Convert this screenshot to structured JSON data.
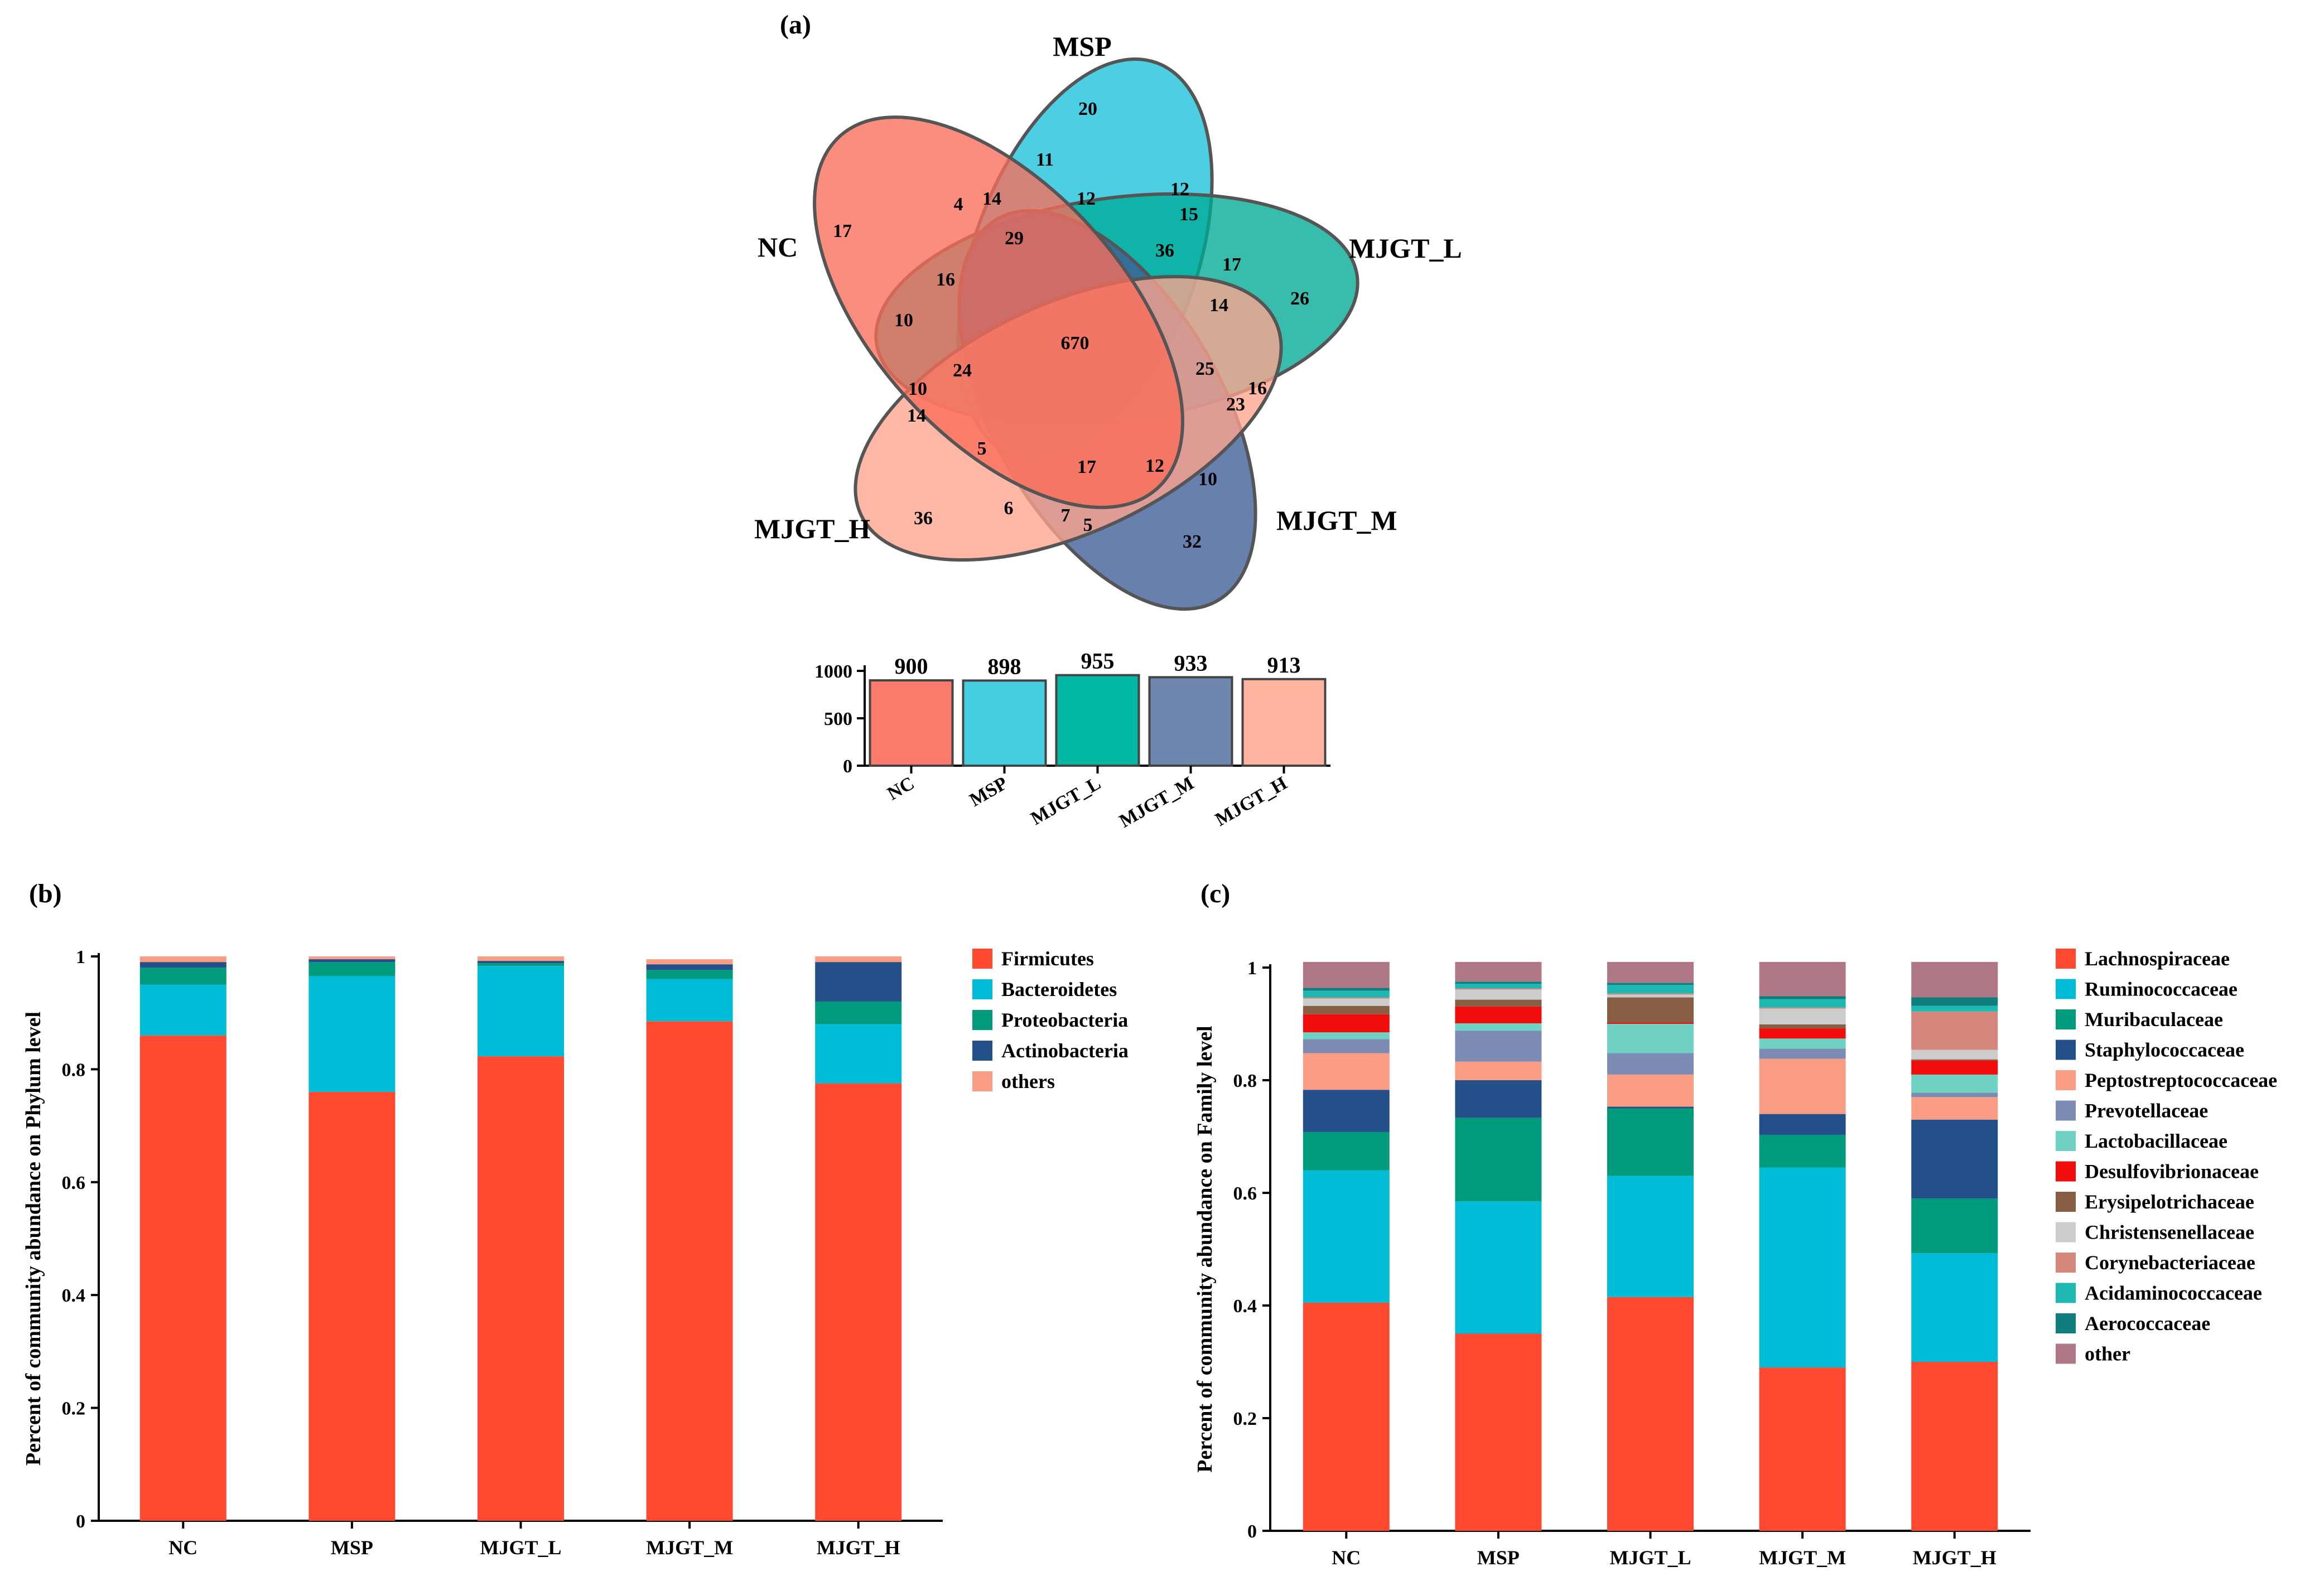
{
  "panel_labels": {
    "a": "(a)",
    "b": "(b)",
    "c": "(c)"
  },
  "venn": {
    "sets": [
      {
        "name": "MSP",
        "color": "#19C2DA"
      },
      {
        "name": "MJGT_L",
        "color": "#00AA96"
      },
      {
        "name": "MJGT_M",
        "color": "#3E5C96"
      },
      {
        "name": "MJGT_H",
        "color": "#FFA48D"
      },
      {
        "name": "NC",
        "color": "#FA6D5A"
      }
    ],
    "region_values": [
      "20",
      "11",
      "12",
      "4",
      "14",
      "12",
      "15",
      "17",
      "29",
      "36",
      "17",
      "16",
      "26",
      "10",
      "670",
      "14",
      "24",
      "25",
      "16",
      "10",
      "23",
      "14",
      "5",
      "17",
      "12",
      "10",
      "36",
      "6",
      "7",
      "5",
      "32"
    ]
  },
  "chart_data": [
    {
      "type": "bar",
      "title": "",
      "categories": [
        "NC",
        "MSP",
        "MJGT_L",
        "MJGT_M",
        "MJGT_H"
      ],
      "values": [
        900,
        898,
        955,
        933,
        913
      ],
      "colors": [
        "#FA7B6C",
        "#44CEE0",
        "#00B8A4",
        "#6F86AF",
        "#FFB4A2"
      ],
      "ylim": [
        0,
        1000
      ],
      "yticks": [
        "0",
        "500",
        "1000"
      ],
      "xlabel": "",
      "ylabel": ""
    },
    {
      "type": "bar",
      "stacked": true,
      "title": "",
      "xlabel": "",
      "ylabel": "Percent of community abundance on Phylum level",
      "ylim": [
        0,
        1
      ],
      "yticks": [
        "0",
        "0.2",
        "0.4",
        "0.6",
        "0.8",
        "1"
      ],
      "legend_position": "right",
      "categories": [
        "NC",
        "MSP",
        "MJGT_L",
        "MJGT_M",
        "MJGT_H"
      ],
      "series": [
        {
          "name": "Firmicutes",
          "color": "#FF4A31",
          "values": [
            0.86,
            0.76,
            0.823,
            0.885,
            0.775
          ]
        },
        {
          "name": "Bacteroidetes",
          "color": "#00BCD6",
          "values": [
            0.09,
            0.205,
            0.16,
            0.075,
            0.105
          ]
        },
        {
          "name": "Proteobacteria",
          "color": "#009B7C",
          "values": [
            0.03,
            0.025,
            0.005,
            0.016,
            0.04
          ]
        },
        {
          "name": "Actinobacteria",
          "color": "#24508A",
          "values": [
            0.01,
            0.005,
            0.004,
            0.01,
            0.07
          ]
        },
        {
          "name": "others",
          "color": "#FA9D84",
          "values": [
            0.01,
            0.005,
            0.008,
            0.009,
            0.01
          ]
        }
      ]
    },
    {
      "type": "bar",
      "stacked": true,
      "title": "",
      "xlabel": "",
      "ylabel": "Percent of community abundance on Family level",
      "ylim": [
        0,
        1
      ],
      "yticks": [
        "0",
        "0.2",
        "0.4",
        "0.6",
        "0.8",
        "1"
      ],
      "legend_position": "right",
      "categories": [
        "NC",
        "MSP",
        "MJGT_L",
        "MJGT_M",
        "MJGT_H"
      ],
      "series": [
        {
          "name": "Lachnospiraceae",
          "color": "#FF4A31",
          "values": [
            0.405,
            0.35,
            0.415,
            0.29,
            0.3
          ]
        },
        {
          "name": "Ruminococcaceae",
          "color": "#00BCD6",
          "values": [
            0.235,
            0.235,
            0.215,
            0.355,
            0.193
          ]
        },
        {
          "name": "Muribaculaceae",
          "color": "#009B7C",
          "values": [
            0.068,
            0.148,
            0.12,
            0.058,
            0.097
          ]
        },
        {
          "name": "Staphylococcaceae",
          "color": "#24508A",
          "values": [
            0.075,
            0.067,
            0.003,
            0.037,
            0.14
          ]
        },
        {
          "name": "Peptostreptococcaceae",
          "color": "#FA9D84",
          "values": [
            0.065,
            0.033,
            0.057,
            0.098,
            0.04
          ]
        },
        {
          "name": "Prevotellaceae",
          "color": "#7D8CB4",
          "values": [
            0.025,
            0.055,
            0.038,
            0.018,
            0.008
          ]
        },
        {
          "name": "Lactobacillaceae",
          "color": "#6FD2C3",
          "values": [
            0.012,
            0.013,
            0.052,
            0.018,
            0.032
          ]
        },
        {
          "name": "Desulfovibrionaceae",
          "color": "#F20D0D",
          "values": [
            0.032,
            0.03,
            0.002,
            0.018,
            0.025
          ]
        },
        {
          "name": "Erysipelotrichaceae",
          "color": "#875E44",
          "values": [
            0.015,
            0.012,
            0.045,
            0.007,
            0.002
          ]
        },
        {
          "name": "Christensenellaceae",
          "color": "#CCCCCC",
          "values": [
            0.013,
            0.018,
            0.005,
            0.028,
            0.017
          ]
        },
        {
          "name": "Corynebacteriaceae",
          "color": "#D4877A",
          "values": [
            0.002,
            0.002,
            0.002,
            0.002,
            0.068
          ]
        },
        {
          "name": "Acidaminococcaceae",
          "color": "#1DB8B2",
          "values": [
            0.012,
            0.008,
            0.015,
            0.015,
            0.01
          ]
        },
        {
          "name": "Aerococcaceae",
          "color": "#107E7E",
          "values": [
            0.005,
            0.004,
            0.004,
            0.005,
            0.015
          ]
        },
        {
          "name": "other",
          "color": "#B07787",
          "values": [
            0.046,
            0.035,
            0.037,
            0.061,
            0.063
          ]
        }
      ]
    }
  ]
}
